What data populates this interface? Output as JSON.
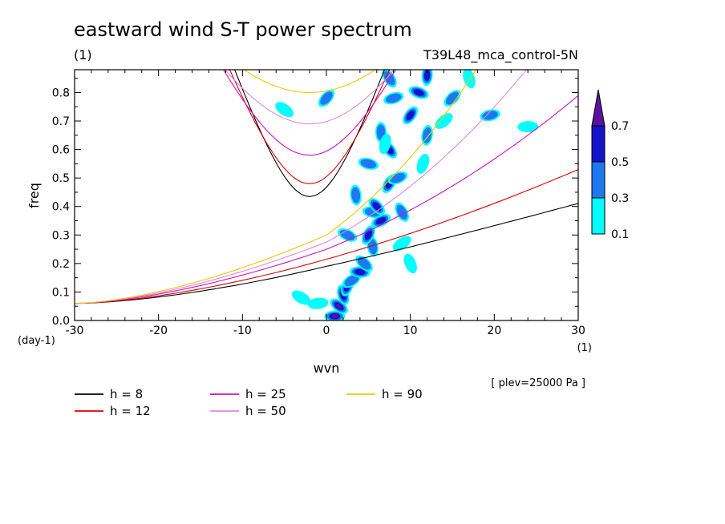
{
  "chart_data": {
    "type": "contour-line",
    "title": "eastward wind S-T power spectrum",
    "subtitle_left": "(1)",
    "subtitle_right": "T39L48_mca_control-5N",
    "xlabel": "wvn",
    "ylabel": "freq",
    "x_units": "(1)",
    "y_units": "(day-1)",
    "level_note": "[ plev=25000 Pa ]",
    "xlim": [
      -30,
      30
    ],
    "ylim": [
      0,
      0.88
    ],
    "x_ticks": [
      -30,
      -20,
      -10,
      0,
      10,
      20,
      30
    ],
    "x_tick_labels": [
      "-30",
      "-20",
      "-10",
      "0",
      "10",
      "20",
      "30"
    ],
    "y_ticks": [
      0,
      0.1,
      0.2,
      0.3,
      0.4,
      0.5,
      0.6,
      0.7,
      0.8
    ],
    "y_tick_labels": [
      "0.0",
      "0.1",
      "0.2",
      "0.3",
      "0.4",
      "0.5",
      "0.6",
      "0.7",
      "0.8"
    ],
    "colorbar": {
      "levels": [
        0.1,
        0.3,
        0.5,
        0.7
      ],
      "labels": [
        "0.1",
        "0.3",
        "0.5",
        "0.7"
      ],
      "colors": [
        "#00ffff",
        "#1e78f0",
        "#1414c8",
        "#5a14a0"
      ]
    },
    "dispersion_curves": [
      {
        "name": "h =  8",
        "h": 8,
        "color": "#000000",
        "minima": [
          0.435,
          0.19
        ]
      },
      {
        "name": "h = 12",
        "h": 12,
        "color": "#e00000",
        "minima": [
          0.48,
          0.215
        ]
      },
      {
        "name": "h = 25",
        "h": 25,
        "color": "#d010c0",
        "minima": [
          0.58,
          0.25
        ]
      },
      {
        "name": "h = 50",
        "h": 50,
        "color": "#e088e0",
        "minima": [
          0.69,
          0.275
        ]
      },
      {
        "name": "h = 90",
        "h": 90,
        "color": "#f0c800",
        "minima": [
          0.8,
          0.3
        ]
      }
    ],
    "power_blobs": [
      {
        "x": 1.0,
        "y": 0.015,
        "level": 0.7
      },
      {
        "x": 1.5,
        "y": 0.05,
        "level": 0.7
      },
      {
        "x": 2.0,
        "y": 0.09,
        "level": 0.5
      },
      {
        "x": 2.5,
        "y": 0.12,
        "level": 0.5
      },
      {
        "x": 3.0,
        "y": 0.14,
        "level": 0.3
      },
      {
        "x": 4.0,
        "y": 0.17,
        "level": 0.5
      },
      {
        "x": 4.5,
        "y": 0.2,
        "level": 0.3
      },
      {
        "x": 5.5,
        "y": 0.26,
        "level": 0.3
      },
      {
        "x": 5.0,
        "y": 0.3,
        "level": 0.5
      },
      {
        "x": 6.5,
        "y": 0.35,
        "level": 0.5
      },
      {
        "x": 5.5,
        "y": 0.38,
        "level": 0.3
      },
      {
        "x": 6.0,
        "y": 0.4,
        "level": 0.5
      },
      {
        "x": 3.5,
        "y": 0.44,
        "level": 0.3
      },
      {
        "x": 7.5,
        "y": 0.48,
        "level": 0.5
      },
      {
        "x": 8.5,
        "y": 0.5,
        "level": 0.3
      },
      {
        "x": 5.0,
        "y": 0.55,
        "level": 0.3
      },
      {
        "x": 7.5,
        "y": 0.6,
        "level": 0.5
      },
      {
        "x": 6.5,
        "y": 0.66,
        "level": 0.3
      },
      {
        "x": 10.0,
        "y": 0.72,
        "level": 0.5
      },
      {
        "x": 8.0,
        "y": 0.78,
        "level": 0.3
      },
      {
        "x": 11.0,
        "y": 0.8,
        "level": 0.5
      },
      {
        "x": 7.5,
        "y": 0.85,
        "level": 0.3
      },
      {
        "x": 12.0,
        "y": 0.86,
        "level": 0.5
      },
      {
        "x": 0.0,
        "y": 0.78,
        "level": 0.3
      },
      {
        "x": 19.5,
        "y": 0.72,
        "level": 0.3
      },
      {
        "x": 2.5,
        "y": 0.3,
        "level": 0.3
      },
      {
        "x": 9.0,
        "y": 0.38,
        "level": 0.3
      },
      {
        "x": 12.0,
        "y": 0.65,
        "level": 0.3
      },
      {
        "x": 15.0,
        "y": 0.78,
        "level": 0.3
      },
      {
        "x": -1.0,
        "y": 0.06,
        "level": 0.1
      },
      {
        "x": -3.0,
        "y": 0.08,
        "level": 0.1
      },
      {
        "x": 10.0,
        "y": 0.2,
        "level": 0.1
      },
      {
        "x": 7.0,
        "y": 0.62,
        "level": 0.1
      },
      {
        "x": 14.0,
        "y": 0.7,
        "level": 0.1
      },
      {
        "x": 24.0,
        "y": 0.68,
        "level": 0.1
      },
      {
        "x": -5.0,
        "y": 0.74,
        "level": 0.1
      },
      {
        "x": 17.0,
        "y": 0.85,
        "level": 0.1
      },
      {
        "x": 11.5,
        "y": 0.55,
        "level": 0.1
      },
      {
        "x": 9.0,
        "y": 0.27,
        "level": 0.1
      }
    ]
  }
}
